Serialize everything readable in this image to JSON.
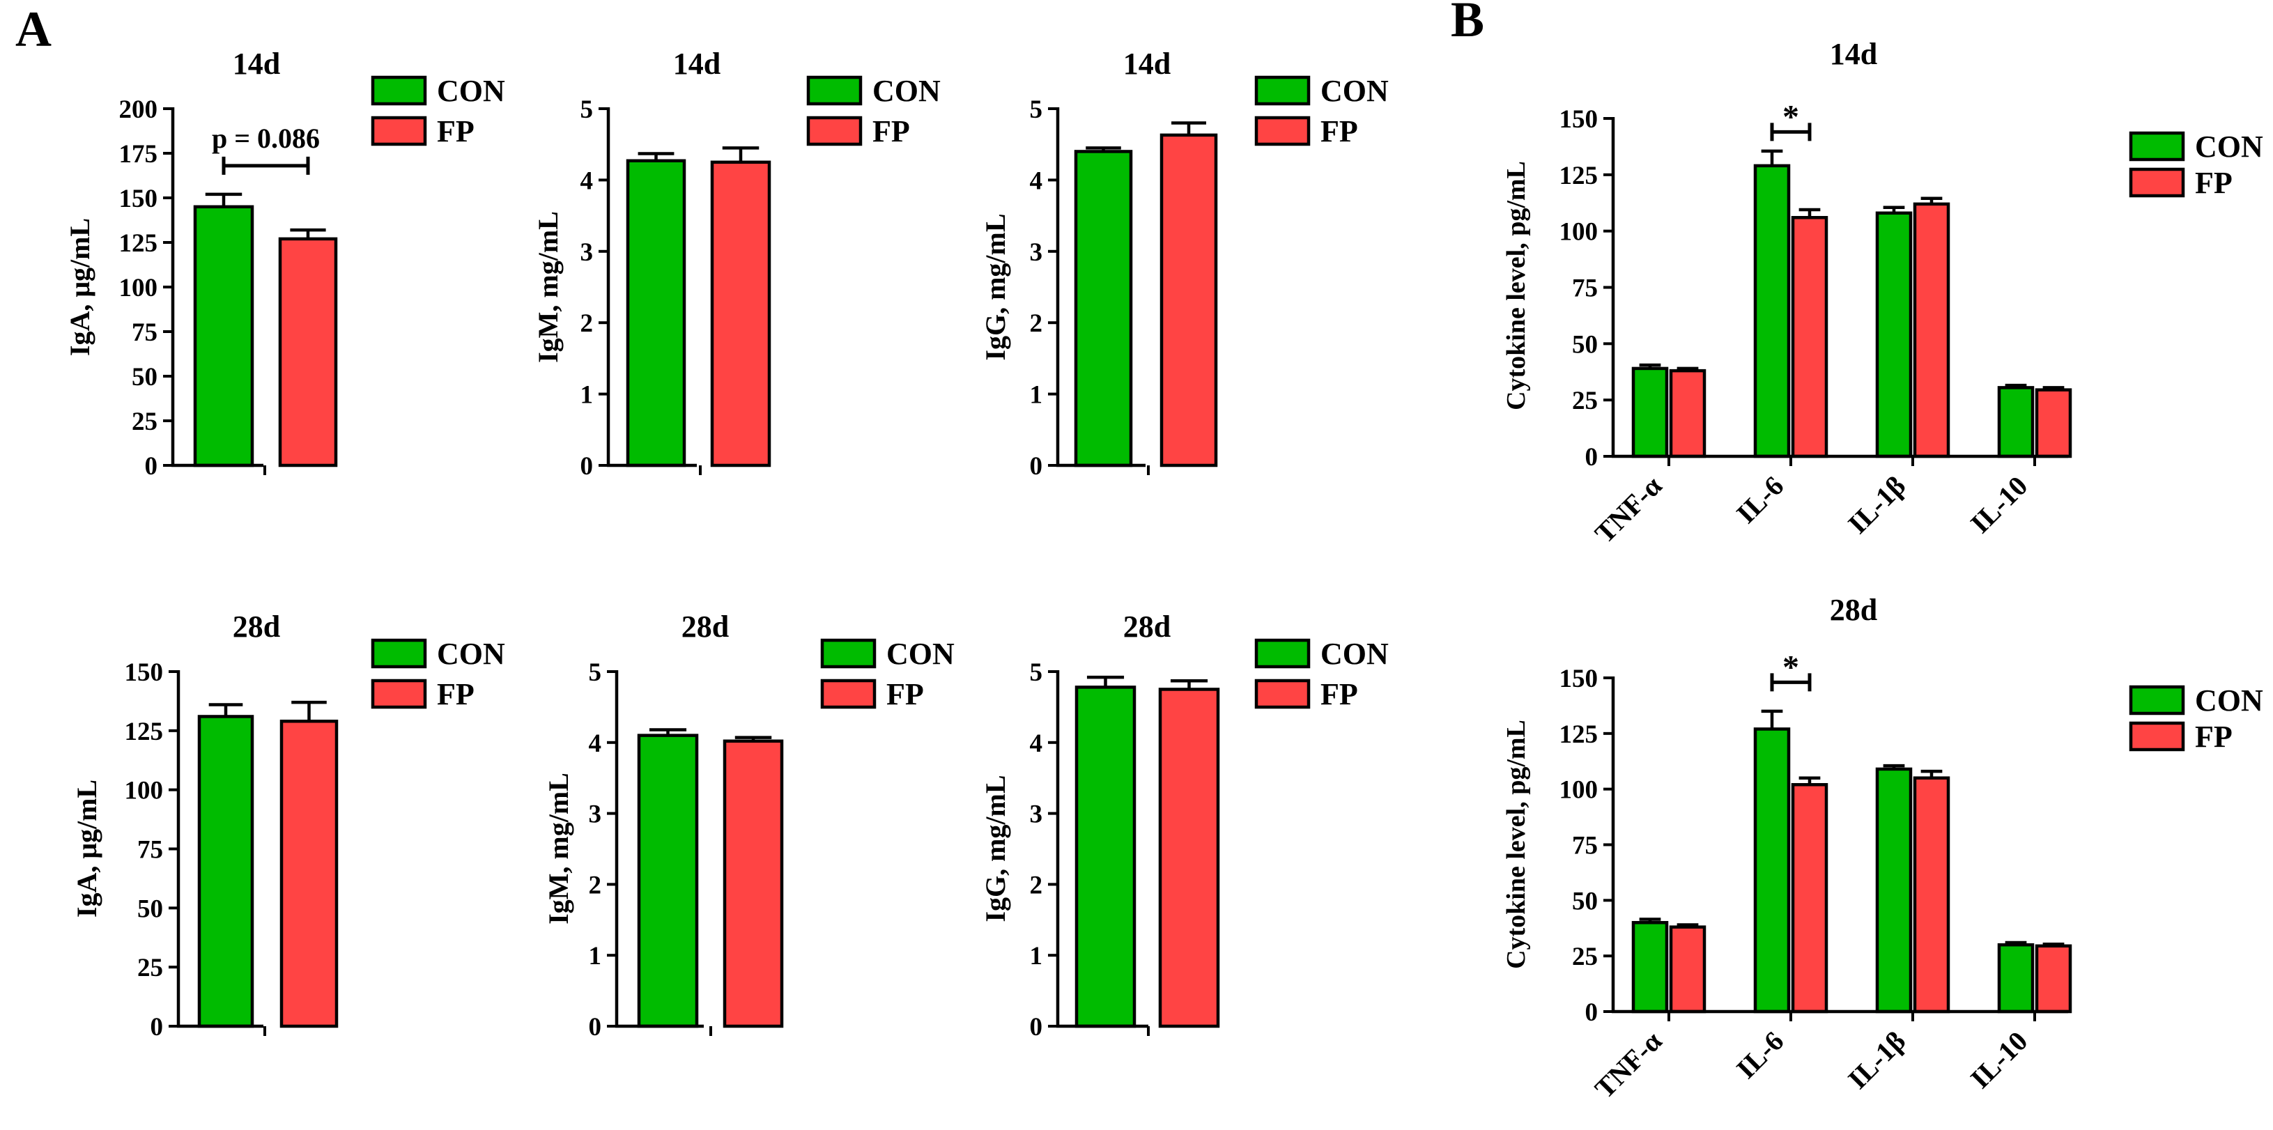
{
  "figure": {
    "panel_labels": [
      "A",
      "B"
    ]
  },
  "colors": {
    "con": "#00bb00",
    "fp": "#ff4444"
  },
  "chart_data": [
    {
      "id": "a1",
      "type": "bar",
      "title": "14d",
      "ylabel": "IgA, μg/mL",
      "ylim": [
        0,
        200
      ],
      "yticks": [
        0,
        25,
        50,
        75,
        100,
        125,
        150,
        175,
        200
      ],
      "categories": [
        ""
      ],
      "series": [
        {
          "name": "CON",
          "values": [
            145
          ],
          "errors": [
            7
          ]
        },
        {
          "name": "FP",
          "values": [
            127
          ],
          "errors": [
            5
          ]
        }
      ],
      "annotation": {
        "text": "p = 0.086",
        "value": 168,
        "from": [
          0,
          0
        ],
        "to": [
          1,
          0
        ]
      },
      "legend": [
        "CON",
        "FP"
      ]
    },
    {
      "id": "a2",
      "type": "bar",
      "title": "14d",
      "ylabel": "IgM, mg/mL",
      "ylim": [
        0,
        5
      ],
      "yticks": [
        0,
        1,
        2,
        3,
        4,
        5
      ],
      "categories": [
        ""
      ],
      "series": [
        {
          "name": "CON",
          "values": [
            4.27
          ],
          "errors": [
            0.1
          ]
        },
        {
          "name": "FP",
          "values": [
            4.25
          ],
          "errors": [
            0.2
          ]
        }
      ],
      "legend": [
        "CON",
        "FP"
      ]
    },
    {
      "id": "a3",
      "type": "bar",
      "title": "14d",
      "ylabel": "IgG, mg/mL",
      "ylim": [
        0,
        5
      ],
      "yticks": [
        0,
        1,
        2,
        3,
        4,
        5
      ],
      "categories": [
        ""
      ],
      "series": [
        {
          "name": "CON",
          "values": [
            4.4
          ],
          "errors": [
            0.05
          ]
        },
        {
          "name": "FP",
          "values": [
            4.63
          ],
          "errors": [
            0.17
          ]
        }
      ],
      "legend": [
        "CON",
        "FP"
      ]
    },
    {
      "id": "a4",
      "type": "bar",
      "title": "28d",
      "ylabel": "IgA, μg/mL",
      "ylim": [
        0,
        150
      ],
      "yticks": [
        0,
        25,
        50,
        75,
        100,
        125,
        150
      ],
      "categories": [
        ""
      ],
      "series": [
        {
          "name": "CON",
          "values": [
            131
          ],
          "errors": [
            5
          ]
        },
        {
          "name": "FP",
          "values": [
            129
          ],
          "errors": [
            8
          ]
        }
      ],
      "legend": [
        "CON",
        "FP"
      ]
    },
    {
      "id": "a5",
      "type": "bar",
      "title": "28d",
      "ylabel": "IgM, mg/mL",
      "ylim": [
        0,
        5
      ],
      "yticks": [
        0,
        1,
        2,
        3,
        4,
        5
      ],
      "categories": [
        ""
      ],
      "series": [
        {
          "name": "CON",
          "values": [
            4.1
          ],
          "errors": [
            0.08
          ]
        },
        {
          "name": "FP",
          "values": [
            4.02
          ],
          "errors": [
            0.05
          ]
        }
      ],
      "legend": [
        "CON",
        "FP"
      ]
    },
    {
      "id": "a6",
      "type": "bar",
      "title": "28d",
      "ylabel": "IgG, mg/mL",
      "ylim": [
        0,
        5
      ],
      "yticks": [
        0,
        1,
        2,
        3,
        4,
        5
      ],
      "categories": [
        ""
      ],
      "series": [
        {
          "name": "CON",
          "values": [
            4.78
          ],
          "errors": [
            0.14
          ]
        },
        {
          "name": "FP",
          "values": [
            4.75
          ],
          "errors": [
            0.12
          ]
        }
      ],
      "legend": [
        "CON",
        "FP"
      ]
    },
    {
      "id": "b1",
      "type": "bar",
      "title": "14d",
      "ylabel": "Cytokine level, pg/mL",
      "ylim": [
        0,
        150
      ],
      "yticks": [
        0,
        25,
        50,
        75,
        100,
        125,
        150
      ],
      "categories": [
        "TNF-α",
        "IL-6",
        "IL-1β",
        "IL-10"
      ],
      "series": [
        {
          "name": "CON",
          "values": [
            39,
            129,
            108,
            30.5
          ],
          "errors": [
            1.5,
            6.5,
            2.5,
            1
          ]
        },
        {
          "name": "FP",
          "values": [
            38,
            106,
            112,
            29.5
          ],
          "errors": [
            1,
            3.5,
            2.5,
            1
          ]
        }
      ],
      "annotation": {
        "text": "*",
        "value": 144,
        "from": [
          0,
          1
        ],
        "to": [
          1,
          1
        ]
      },
      "legend": [
        "CON",
        "FP"
      ]
    },
    {
      "id": "b2",
      "type": "bar",
      "title": "28d",
      "ylabel": "Cytokine level, pg/mL",
      "ylim": [
        0,
        150
      ],
      "yticks": [
        0,
        25,
        50,
        75,
        100,
        125,
        150
      ],
      "categories": [
        "TNF-α",
        "IL-6",
        "IL-1β",
        "IL-10"
      ],
      "series": [
        {
          "name": "CON",
          "values": [
            40,
            127,
            109,
            30
          ],
          "errors": [
            1.5,
            8,
            1.5,
            1
          ]
        },
        {
          "name": "FP",
          "values": [
            38,
            102,
            105,
            29.5
          ],
          "errors": [
            1,
            3,
            3,
            0.8
          ]
        }
      ],
      "annotation": {
        "text": "*",
        "value": 148,
        "from": [
          0,
          1
        ],
        "to": [
          1,
          1
        ]
      },
      "legend": [
        "CON",
        "FP"
      ]
    }
  ]
}
